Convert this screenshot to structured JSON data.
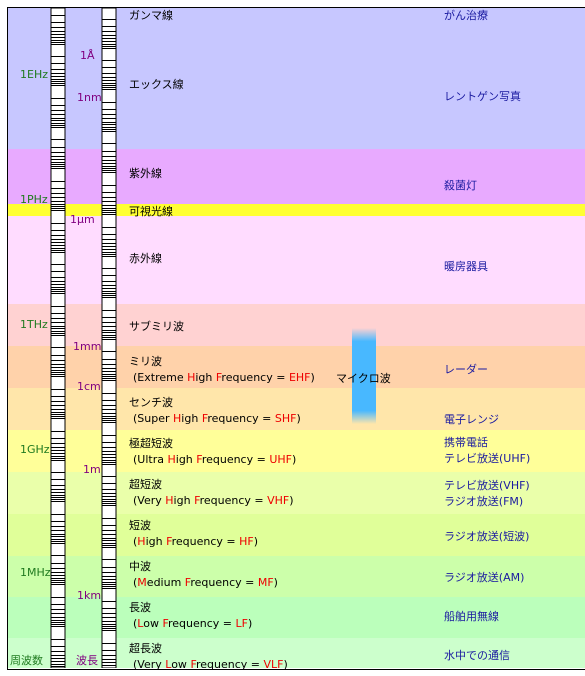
{
  "bands": [
    {
      "name": "ガンマ線",
      "color": "#c7c7ff",
      "use": [
        "がん治療"
      ]
    },
    {
      "name": "エックス線",
      "color": "#c7c7ff",
      "use": [
        "レントゲン写真"
      ]
    },
    {
      "name": "紫外線",
      "color": "#e8aaff",
      "use": [
        "殺菌灯"
      ]
    },
    {
      "name": "可視光線",
      "color": "#ffff33",
      "use": []
    },
    {
      "name": "赤外線",
      "color": "#ffdcff",
      "use": [
        "暖房器具"
      ]
    },
    {
      "name": "サブミリ波",
      "color": "#ffd2d2",
      "use": []
    },
    {
      "name": "ミリ波",
      "color": "#ffd2aa",
      "sub": [
        "(Extreme ",
        "H",
        "igh ",
        "F",
        "requency = ",
        "EHF",
        ")"
      ],
      "use": [
        "レーダー"
      ]
    },
    {
      "name": "センチ波",
      "color": "#ffe6aa",
      "sub": [
        "(Super ",
        "H",
        "igh ",
        "F",
        "requency = ",
        "SHF",
        ")"
      ],
      "use": [
        "電子レンジ"
      ]
    },
    {
      "name": "極超短波",
      "color": "#ffff99",
      "sub": [
        "(Ultra ",
        "H",
        "igh ",
        "F",
        "requency = ",
        "UHF",
        ")"
      ],
      "use": [
        "携帯電話",
        "テレビ放送(UHF)"
      ]
    },
    {
      "name": "超短波",
      "color": "#eaffaa",
      "sub": [
        "(Very ",
        "H",
        "igh ",
        "F",
        "requency = ",
        "VHF",
        ")"
      ],
      "use": [
        "テレビ放送(VHF)",
        "ラジオ放送(FM)"
      ]
    },
    {
      "name": "短波",
      "color": "#e0ff99",
      "sub": [
        "(",
        "H",
        "igh ",
        "F",
        "requency = ",
        "HF",
        ")"
      ],
      "use": [
        "ラジオ放送(短波)"
      ]
    },
    {
      "name": "中波",
      "color": "#ccffaa",
      "sub": [
        "(",
        "M",
        "edium ",
        "F",
        "requency = ",
        "MF",
        ")"
      ],
      "use": [
        "ラジオ放送(AM)"
      ]
    },
    {
      "name": "長波",
      "color": "#bbffbb",
      "sub": [
        "(",
        "L",
        "ow ",
        "F",
        "requency = ",
        "LF",
        ")"
      ],
      "use": [
        "船舶用無線"
      ]
    },
    {
      "name": "超長波",
      "color": "#ccffcc",
      "sub": [
        "(Very ",
        "L",
        "ow ",
        "F",
        "requency = ",
        "VLF",
        ")"
      ],
      "use": [
        "水中での通信"
      ]
    }
  ],
  "microwave_label": "マイクロ波",
  "frequency_marks": [
    "1EHz",
    "1PHz",
    "1THz",
    "1GHz",
    "1MHz"
  ],
  "wavelength_marks": [
    "1Å",
    "1nm",
    "1μm",
    "1mm",
    "1cm",
    "1m",
    "1km"
  ],
  "axis_labels": {
    "frequency": "周波数",
    "wavelength": "波長"
  },
  "colors": {
    "use_text": "#1a1aa0",
    "frequency_text": "#1f7a1f",
    "wavelength_text": "#800080",
    "highlight": "#ee0000",
    "microwave": "#48b8ff"
  }
}
